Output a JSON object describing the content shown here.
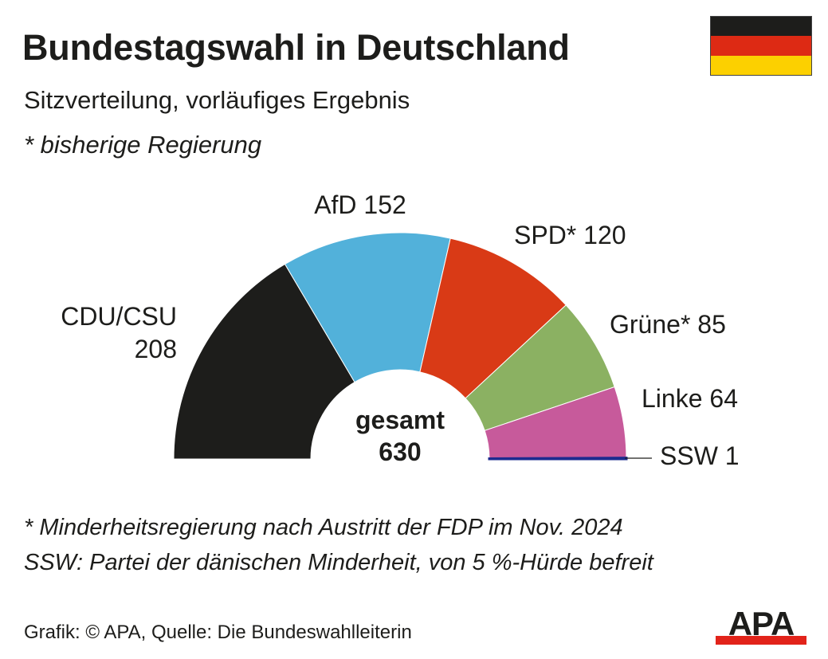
{
  "header": {
    "title": "Bundestagswahl in Deutschland",
    "subtitle": "Sitzverteilung, vorläufiges Ergebnis",
    "note": "* bisherige Regierung"
  },
  "flag": {
    "colors": [
      "#1d1d1b",
      "#dd2a14",
      "#fcd000"
    ]
  },
  "chart_data": {
    "type": "pie",
    "subtype": "parliament-semicircle",
    "total_label": "gesamt",
    "total": 630,
    "series": [
      {
        "name": "CDU/CSU",
        "value": 208,
        "color": "#1d1d1b"
      },
      {
        "name": "AfD",
        "value": 152,
        "color": "#52b1da"
      },
      {
        "name": "SPD*",
        "value": 120,
        "color": "#d93a16"
      },
      {
        "name": "Grüne*",
        "value": 85,
        "color": "#8bb162"
      },
      {
        "name": "Linke",
        "value": 64,
        "color": "#c75a9b"
      },
      {
        "name": "SSW",
        "value": 1,
        "color": "#1d2b8f"
      }
    ]
  },
  "footnotes": [
    "* Minderheitsregierung nach Austritt der FDP im Nov. 2024",
    "SSW: Partei der dänischen Minderheit, von 5 %-Hürde befreit"
  ],
  "credit": "Grafik: © APA, Quelle: Die Bundeswahlleiterin",
  "logo": {
    "text": "APA",
    "accent": "#e2231a"
  }
}
